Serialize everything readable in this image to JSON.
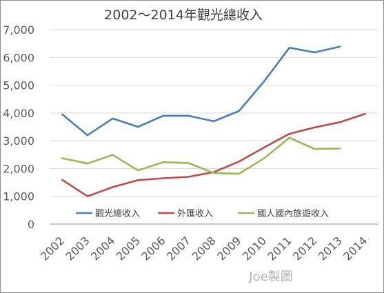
{
  "chart_data": {
    "type": "line",
    "title": "2002～2014年觀光總收入",
    "categories": [
      "2002",
      "2003",
      "2004",
      "2005",
      "2006",
      "2007",
      "2008",
      "2009",
      "2010",
      "2011",
      "2012",
      "2013",
      "2014"
    ],
    "y_ticks": [
      "0",
      "1,000",
      "2,000",
      "3,000",
      "4,000",
      "5,000",
      "6,000",
      "7,000"
    ],
    "ylim": [
      0,
      7000
    ],
    "grid": true,
    "legend_position": "bottom-inside",
    "series": [
      {
        "name": "觀光總收入",
        "color": "#4a7ebb",
        "values": [
          3950,
          3200,
          3800,
          3500,
          3900,
          3900,
          3700,
          4070,
          5140,
          6350,
          6180,
          6390,
          null
        ]
      },
      {
        "name": "外匯收入",
        "color": "#be4b48",
        "values": [
          1590,
          1000,
          1330,
          1580,
          1650,
          1700,
          1870,
          2250,
          2760,
          3250,
          3480,
          3670,
          3970
        ]
      },
      {
        "name": "國人國內旅遊收入",
        "color": "#98b954",
        "values": [
          2370,
          2180,
          2490,
          1930,
          2230,
          2200,
          1840,
          1810,
          2370,
          3110,
          2700,
          2720,
          null
        ]
      }
    ]
  },
  "credit": "Joe製圖"
}
